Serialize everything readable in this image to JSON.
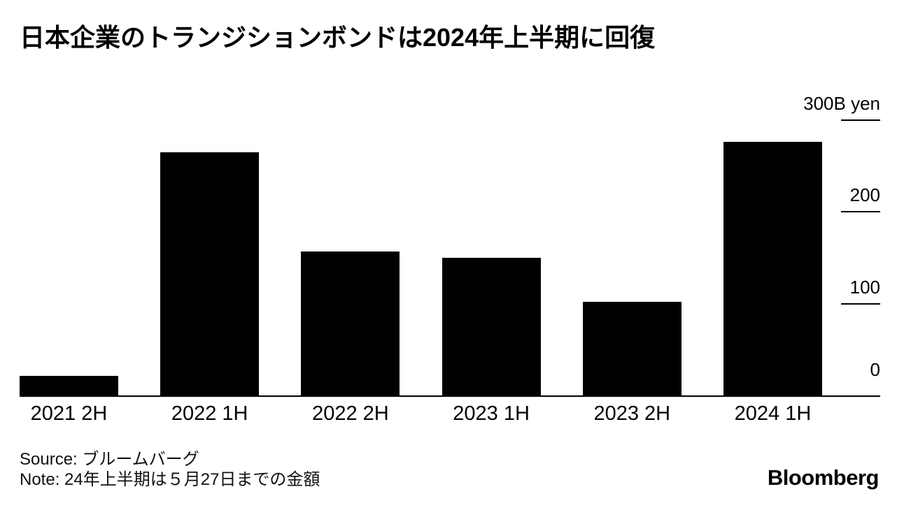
{
  "title": "日本企業のトランジションボンドは2024年上半期に回復",
  "chart_data": {
    "type": "bar",
    "title": "日本企業のトランジションボンドは2024年上半期に回復",
    "categories": [
      "2021 2H",
      "2022 1H",
      "2022 2H",
      "2023 1H",
      "2023 2H",
      "2024 1H"
    ],
    "values": [
      21,
      265,
      157,
      150,
      102,
      276
    ],
    "unit": "B yen",
    "xlabel": "",
    "ylabel": "",
    "ylim": [
      0,
      300
    ],
    "yticks": [
      {
        "value": 0,
        "label": "0",
        "line": false
      },
      {
        "value": 100,
        "label": "100",
        "line": true
      },
      {
        "value": 200,
        "label": "200",
        "line": true
      },
      {
        "value": 300,
        "label": "300B yen",
        "line": true
      }
    ],
    "axis_side": "right",
    "grid": false,
    "legend": "none",
    "bar_color": "#000000",
    "background_color": "#ffffff"
  },
  "footer": {
    "source": "Source: ブルームバーグ",
    "note": "Note: 24年上半期は５月27日までの金額",
    "brand": "Bloomberg"
  }
}
